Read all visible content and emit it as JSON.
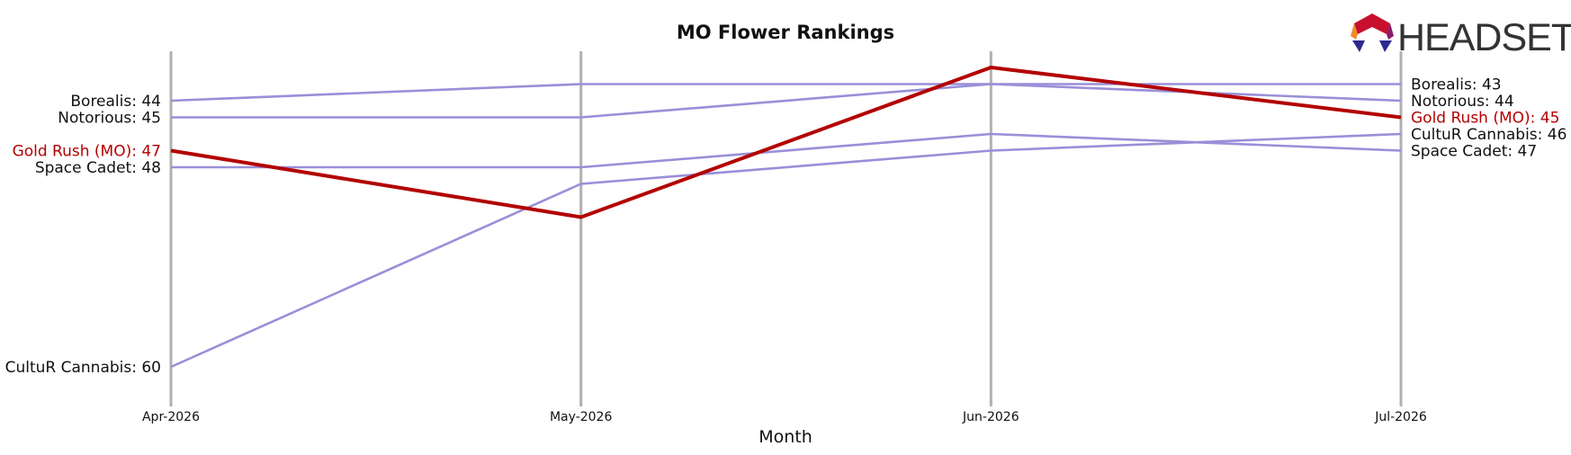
{
  "chart_data": {
    "type": "line",
    "title": "MO Flower Rankings",
    "xlabel": "Month",
    "ylabel": "",
    "x": [
      "Apr-2026",
      "May-2026",
      "Jun-2026",
      "Jul-2026"
    ],
    "y_inverted": true,
    "ylim": [
      41,
      61
    ],
    "grid": "vertical lines at each month",
    "highlight_color": "#b30000",
    "other_color": "#9a8fd8",
    "series": [
      {
        "name": "Borealis",
        "values": [
          44,
          43,
          43,
          43
        ],
        "highlight": false
      },
      {
        "name": "Notorious",
        "values": [
          45,
          45,
          43,
          44
        ],
        "highlight": false
      },
      {
        "name": "Space Cadet",
        "values": [
          48,
          48,
          46,
          47
        ],
        "highlight": false
      },
      {
        "name": "CultuR Cannabis",
        "values": [
          60,
          49,
          47,
          46
        ],
        "highlight": false
      },
      {
        "name": "Gold Rush (MO)",
        "values": [
          47,
          51,
          42,
          45
        ],
        "highlight": true
      }
    ]
  },
  "logo": {
    "text": "HEADSET"
  }
}
